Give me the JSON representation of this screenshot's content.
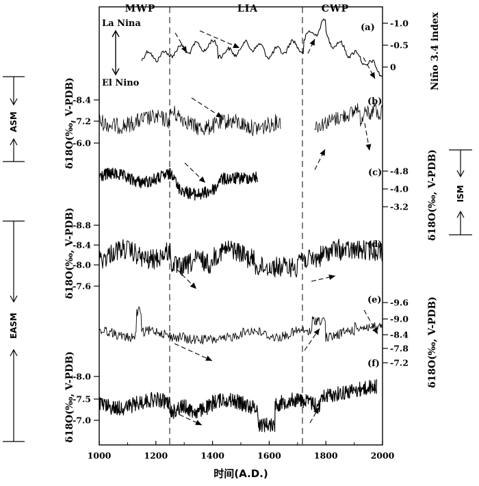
{
  "chart_data": {
    "type": "line",
    "xlabel": "时间(A.D.)",
    "x_range": [
      1000,
      2000
    ],
    "x_ticks": [
      "1000",
      "1200",
      "1400",
      "1600",
      "1800",
      "2000"
    ],
    "periods": [
      {
        "label": "MWP",
        "center": 1095
      },
      {
        "label": "LIA",
        "center": 1485
      },
      {
        "label": "CWP",
        "center": 1855
      }
    ],
    "period_boundaries": [
      1250,
      1715
    ],
    "enso": {
      "top_label": "La Nina",
      "bottom_label": "El Nino"
    },
    "side_labels": {
      "asm": "ASM",
      "easm": "EASM",
      "ism": "ISM"
    },
    "axis_labels": {
      "nino": "Niño 3.4 index",
      "b_left": "δ18O(‰, V-PDB)",
      "c_right": "δ18O(‰, V-PDB)",
      "d_left": "δ18O(‰, V-PDB)",
      "e_right": "δ18O(‰, V-PDB)",
      "f_left": "δ18O(‰, V-PDB)"
    },
    "panels": [
      {
        "id": "a",
        "label": "(a)",
        "axis": "right",
        "ticks": [
          "-1.0",
          "-0.5",
          "0"
        ],
        "tick_values": [
          -1.0,
          -0.5,
          0
        ],
        "x_start": 1150,
        "x_end": 2000
      },
      {
        "id": "b",
        "label": "(b)",
        "axis": "left",
        "ticks": [
          "-8.4",
          "-7.2",
          "-6.0"
        ],
        "tick_values": [
          -8.4,
          -7.2,
          -6.0
        ],
        "x_start": 1000,
        "x_end": 2000
      },
      {
        "id": "c",
        "label": "(c)",
        "axis": "right",
        "ticks": [
          "-4.8",
          "-4.0",
          "-3.2"
        ],
        "tick_values": [
          -4.8,
          -4.0,
          -3.2
        ],
        "x_start": 1000,
        "x_end": 1560
      },
      {
        "id": "d",
        "label": "(d)",
        "axis": "left",
        "ticks": [
          "-8.8",
          "-8.4",
          "-8.0",
          "-7.6"
        ],
        "tick_values": [
          -8.8,
          -8.4,
          -8.0,
          -7.6
        ],
        "x_start": 1000,
        "x_end": 2000
      },
      {
        "id": "e",
        "label": "(e)",
        "axis": "right",
        "ticks": [
          "-9.6",
          "-9.0",
          "-8.4",
          "-7.8",
          "-7.2"
        ],
        "tick_values": [
          -9.6,
          -9.0,
          -8.4,
          -7.8,
          -7.2
        ],
        "x_start": 1000,
        "x_end": 2000
      },
      {
        "id": "f",
        "label": "(f)",
        "axis": "left",
        "ticks": [
          "-8.0",
          "-7.5",
          "-7.0"
        ],
        "tick_values": [
          -8.0,
          -7.5,
          -7.0
        ],
        "x_start": 1000,
        "x_end": 1980
      }
    ]
  }
}
